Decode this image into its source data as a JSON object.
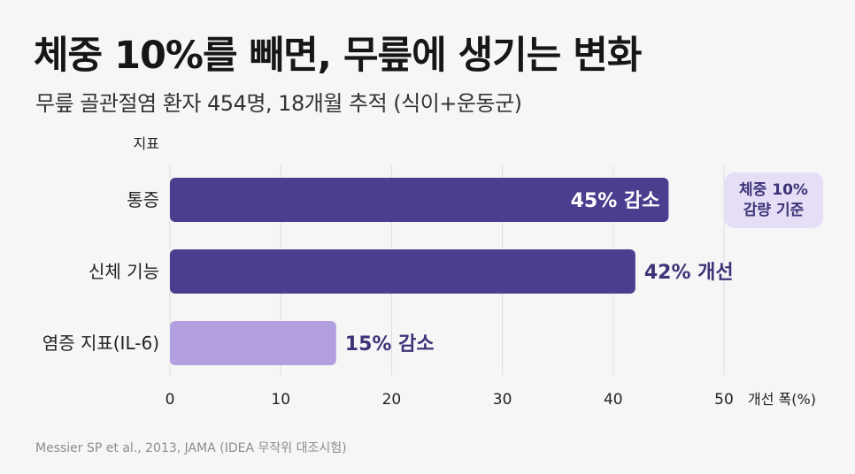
{
  "title": "체중 10%를 빼면, 무릎에 생기는 변화",
  "subtitle": "무릎 골관절염 환자 454명, 18개월 추적 (식이+운동군)",
  "source": "Messier SP et al., 2013, JAMA (IDEA 무작위 대조시험)",
  "badge": {
    "line1": "체중 10%",
    "line2": "감량 기준"
  },
  "colors": {
    "dark_bar": "#4a3f8f",
    "light_bar": "#b29fdf",
    "badge_bg": "#e5def6",
    "value_text_dark": "#3d3478"
  },
  "chart_data": {
    "type": "bar",
    "orientation": "horizontal",
    "y_header": "지표",
    "xlabel": "개선 폭(%)",
    "categories": [
      "통증",
      "신체 기능",
      "염증 지표(IL-6)"
    ],
    "values": [
      45,
      42,
      15
    ],
    "value_labels": [
      "45% 감소",
      "42% 개선",
      "15% 감소"
    ],
    "bar_colors": [
      "#4a3f8f",
      "#4a3f8f",
      "#b29fdf"
    ],
    "xlim": [
      0,
      50
    ],
    "xticks": [
      0,
      10,
      20,
      30,
      40,
      50
    ],
    "grid": true
  }
}
